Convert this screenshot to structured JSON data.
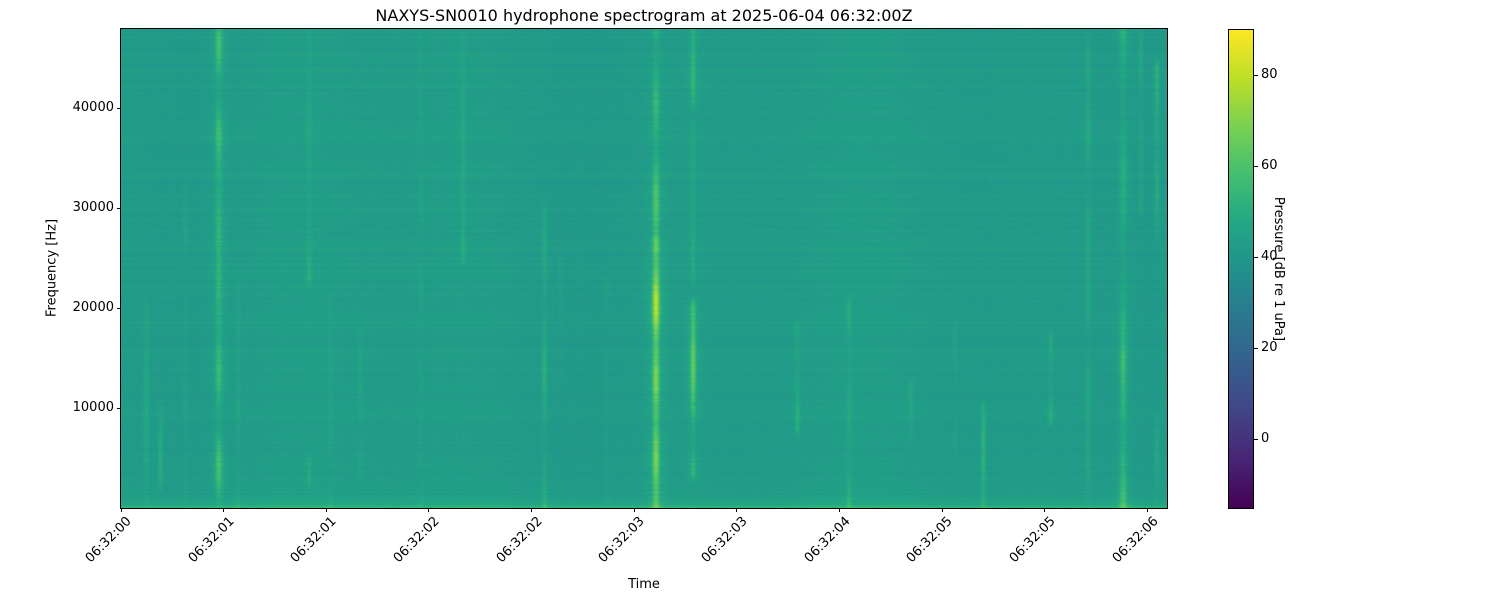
{
  "title": "NAXYS-SN0010 hydrophone spectrogram at 2025-06-04 06:32:00Z",
  "chart_data": {
    "type": "heatmap",
    "title": "NAXYS-SN0010 hydrophone spectrogram at 2025-06-04 06:32:00Z",
    "xlabel": "Time",
    "ylabel": "Frequency [Hz]",
    "x_tick_labels": [
      "06:32:00",
      "06:32:01",
      "06:32:01",
      "06:32:02",
      "06:32:02",
      "06:32:03",
      "06:32:03",
      "06:32:04",
      "06:32:05",
      "06:32:05",
      "06:32:06"
    ],
    "x_tick_interval_s": 0.58,
    "x_span_s": 5.91,
    "y_ticks_hz": [
      10000,
      20000,
      30000,
      40000
    ],
    "y_tick_labels": [
      "10000",
      "20000",
      "30000",
      "40000"
    ],
    "freq_range_hz": [
      0,
      48000
    ],
    "grid": false,
    "colorbar": {
      "label": "Pressure [dB re 1 uPa]",
      "vmin_db": -15,
      "vmax_db": 90,
      "ticks_db": [
        80,
        60,
        40,
        20,
        0
      ],
      "tick_labels": [
        "80",
        "60",
        "40",
        "20",
        "0"
      ],
      "colormap": "viridis"
    },
    "background_level_db": 42.8,
    "background_noise_db": 2.5,
    "low_freq_band_boost_db": 8.5,
    "transients": [
      {
        "time_s": 0.14,
        "f_lo_hz": 0,
        "f_hi_hz": 21600,
        "excess_db": 6,
        "width_s": 0.022
      },
      {
        "time_s": 0.22,
        "f_lo_hz": 1400,
        "f_hi_hz": 12000,
        "excess_db": 9,
        "width_s": 0.018
      },
      {
        "time_s": 0.36,
        "f_lo_hz": 0,
        "f_hi_hz": 33600,
        "excess_db": 4,
        "width_s": 0.018
      },
      {
        "time_s": 0.55,
        "f_lo_hz": 0,
        "f_hi_hz": 48000,
        "excess_db": 13,
        "width_s": 0.028
      },
      {
        "time_s": 0.66,
        "f_lo_hz": 0,
        "f_hi_hz": 24000,
        "excess_db": 5,
        "width_s": 0.018
      },
      {
        "time_s": 1.06,
        "f_lo_hz": 21600,
        "f_hi_hz": 48000,
        "excess_db": 7,
        "width_s": 0.022
      },
      {
        "time_s": 1.06,
        "f_lo_hz": 1400,
        "f_hi_hz": 5800,
        "excess_db": 9,
        "width_s": 0.018
      },
      {
        "time_s": 1.18,
        "f_lo_hz": 0,
        "f_hi_hz": 21600,
        "excess_db": 4,
        "width_s": 0.018
      },
      {
        "time_s": 1.35,
        "f_lo_hz": 2400,
        "f_hi_hz": 19200,
        "excess_db": 6,
        "width_s": 0.022
      },
      {
        "time_s": 1.69,
        "f_lo_hz": 0,
        "f_hi_hz": 48000,
        "excess_db": 3,
        "width_s": 0.018
      },
      {
        "time_s": 1.93,
        "f_lo_hz": 24000,
        "f_hi_hz": 48000,
        "excess_db": 7,
        "width_s": 0.022
      },
      {
        "time_s": 2.39,
        "f_lo_hz": 0,
        "f_hi_hz": 31200,
        "excess_db": 9,
        "width_s": 0.022
      },
      {
        "time_s": 2.48,
        "f_lo_hz": 12000,
        "f_hi_hz": 26400,
        "excess_db": 4,
        "width_s": 0.018
      },
      {
        "time_s": 2.74,
        "f_lo_hz": 0,
        "f_hi_hz": 24000,
        "excess_db": 3,
        "width_s": 0.018
      },
      {
        "time_s": 3.02,
        "f_lo_hz": 0,
        "f_hi_hz": 48000,
        "excess_db": 17,
        "width_s": 0.026
      },
      {
        "time_s": 3.02,
        "f_lo_hz": 0,
        "f_hi_hz": 27800,
        "excess_db": 16,
        "width_s": 0.026
      },
      {
        "time_s": 3.23,
        "f_lo_hz": 39400,
        "f_hi_hz": 48000,
        "excess_db": 11,
        "width_s": 0.022
      },
      {
        "time_s": 3.23,
        "f_lo_hz": 2400,
        "f_hi_hz": 21600,
        "excess_db": 20,
        "width_s": 0.022
      },
      {
        "time_s": 3.23,
        "f_lo_hz": 21600,
        "f_hi_hz": 39400,
        "excess_db": 6,
        "width_s": 0.022
      },
      {
        "time_s": 3.82,
        "f_lo_hz": 6700,
        "f_hi_hz": 19200,
        "excess_db": 8,
        "width_s": 0.022
      },
      {
        "time_s": 4.11,
        "f_lo_hz": 0,
        "f_hi_hz": 21600,
        "excess_db": 8,
        "width_s": 0.022
      },
      {
        "time_s": 4.46,
        "f_lo_hz": 5800,
        "f_hi_hz": 13400,
        "excess_db": 5,
        "width_s": 0.018
      },
      {
        "time_s": 4.71,
        "f_lo_hz": 4800,
        "f_hi_hz": 19200,
        "excess_db": 4,
        "width_s": 0.018
      },
      {
        "time_s": 4.87,
        "f_lo_hz": 0,
        "f_hi_hz": 11500,
        "excess_db": 10,
        "width_s": 0.02
      },
      {
        "time_s": 5.25,
        "f_lo_hz": 7700,
        "f_hi_hz": 18200,
        "excess_db": 9,
        "width_s": 0.022
      },
      {
        "time_s": 5.46,
        "f_lo_hz": 0,
        "f_hi_hz": 48000,
        "excess_db": 7,
        "width_s": 0.024
      },
      {
        "time_s": 5.66,
        "f_lo_hz": 0,
        "f_hi_hz": 48000,
        "excess_db": 12,
        "width_s": 0.028
      },
      {
        "time_s": 5.66,
        "f_lo_hz": 8600,
        "f_hi_hz": 16300,
        "excess_db": 10,
        "width_s": 0.024
      },
      {
        "time_s": 5.76,
        "f_lo_hz": 28800,
        "f_hi_hz": 48000,
        "excess_db": 6,
        "width_s": 0.018
      },
      {
        "time_s": 5.85,
        "f_lo_hz": 26400,
        "f_hi_hz": 45600,
        "excess_db": 9,
        "width_s": 0.022
      },
      {
        "time_s": 5.85,
        "f_lo_hz": 0,
        "f_hi_hz": 10600,
        "excess_db": 7,
        "width_s": 0.022
      }
    ]
  },
  "colors": {
    "background": "#ffffff",
    "axis": "#000000",
    "text": "#000000",
    "viridis_stops": [
      "#440154",
      "#482475",
      "#414487",
      "#355f8d",
      "#2a788e",
      "#21918c",
      "#22a884",
      "#44bf70",
      "#7ad151",
      "#bddf26",
      "#fde725"
    ]
  }
}
